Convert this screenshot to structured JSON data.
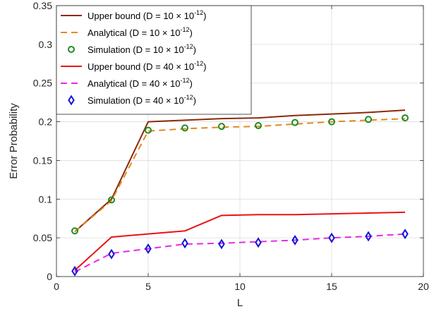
{
  "chart_data": {
    "type": "line",
    "title": "",
    "xlabel": "L",
    "ylabel": "Error Probability",
    "xlim": [
      0,
      20
    ],
    "ylim": [
      0,
      0.35
    ],
    "xticks": [
      0,
      5,
      10,
      15,
      20
    ],
    "xtick_labels": [
      "0",
      "5",
      "10",
      "15",
      "20"
    ],
    "yticks": [
      0,
      0.05,
      0.1,
      0.15,
      0.2,
      0.25,
      0.3,
      0.35
    ],
    "ytick_labels": [
      "0",
      "0.05",
      "0.1",
      "0.15",
      "0.2",
      "0.25",
      "0.3",
      "0.35"
    ],
    "grid": true,
    "legend_position": "top-left",
    "series": [
      {
        "name": "Upper bound (D = 10 × 10^-12)",
        "legend_prefix": "Upper bound (D = 10 × 10",
        "legend_exp": "-12",
        "color": "#8B2A0A",
        "style": "solid",
        "marker": "none",
        "x": [
          1,
          3,
          5,
          7,
          9,
          11,
          13,
          15,
          17,
          19
        ],
        "y": [
          0.058,
          0.1,
          0.2,
          0.202,
          0.204,
          0.205,
          0.208,
          0.21,
          0.212,
          0.215
        ]
      },
      {
        "name": "Analytical (D = 10 × 10^-12)",
        "legend_prefix": "Analytical (D = 10 × 10",
        "legend_exp": "-12",
        "color": "#E08A1E",
        "style": "dashed",
        "marker": "none",
        "x": [
          1,
          3,
          5,
          7,
          9,
          11,
          13,
          15,
          17,
          19
        ],
        "y": [
          0.058,
          0.098,
          0.188,
          0.191,
          0.193,
          0.194,
          0.197,
          0.2,
          0.202,
          0.204
        ]
      },
      {
        "name": "Simulation (D = 10 × 10^-12)",
        "legend_prefix": "Simulation (D = 10 × 10",
        "legend_exp": "-12",
        "color": "#1E8C1E",
        "style": "none",
        "marker": "circle",
        "x": [
          1,
          3,
          5,
          7,
          9,
          11,
          13,
          15,
          17,
          19
        ],
        "y": [
          0.059,
          0.099,
          0.189,
          0.192,
          0.194,
          0.195,
          0.199,
          0.2,
          0.203,
          0.205
        ]
      },
      {
        "name": "Upper bound (D = 40 × 10^-12)",
        "legend_prefix": "Upper bound (D = 40 × 10",
        "legend_exp": "-12",
        "color": "#E81414",
        "style": "solid",
        "marker": "none",
        "x": [
          1,
          3,
          5,
          7,
          9,
          11,
          13,
          15,
          17,
          19
        ],
        "y": [
          0.008,
          0.051,
          0.055,
          0.059,
          0.079,
          0.08,
          0.08,
          0.081,
          0.082,
          0.083
        ]
      },
      {
        "name": "Analytical (D = 40 × 10^-12)",
        "legend_prefix": "Analytical (D = 40 × 10",
        "legend_exp": "-12",
        "color": "#E62BE6",
        "style": "dashed",
        "marker": "none",
        "x": [
          1,
          3,
          5,
          7,
          9,
          11,
          13,
          15,
          17,
          19
        ],
        "y": [
          0.006,
          0.03,
          0.036,
          0.042,
          0.043,
          0.045,
          0.047,
          0.05,
          0.052,
          0.055
        ]
      },
      {
        "name": "Simulation (D = 40 × 10^-12)",
        "legend_prefix": "Simulation (D = 40 × 10",
        "legend_exp": "-12",
        "color": "#1414D8",
        "style": "none",
        "marker": "diamond",
        "x": [
          1,
          3,
          5,
          7,
          9,
          11,
          13,
          15,
          17,
          19
        ],
        "y": [
          0.007,
          0.029,
          0.036,
          0.043,
          0.042,
          0.044,
          0.047,
          0.05,
          0.052,
          0.055
        ]
      }
    ]
  }
}
